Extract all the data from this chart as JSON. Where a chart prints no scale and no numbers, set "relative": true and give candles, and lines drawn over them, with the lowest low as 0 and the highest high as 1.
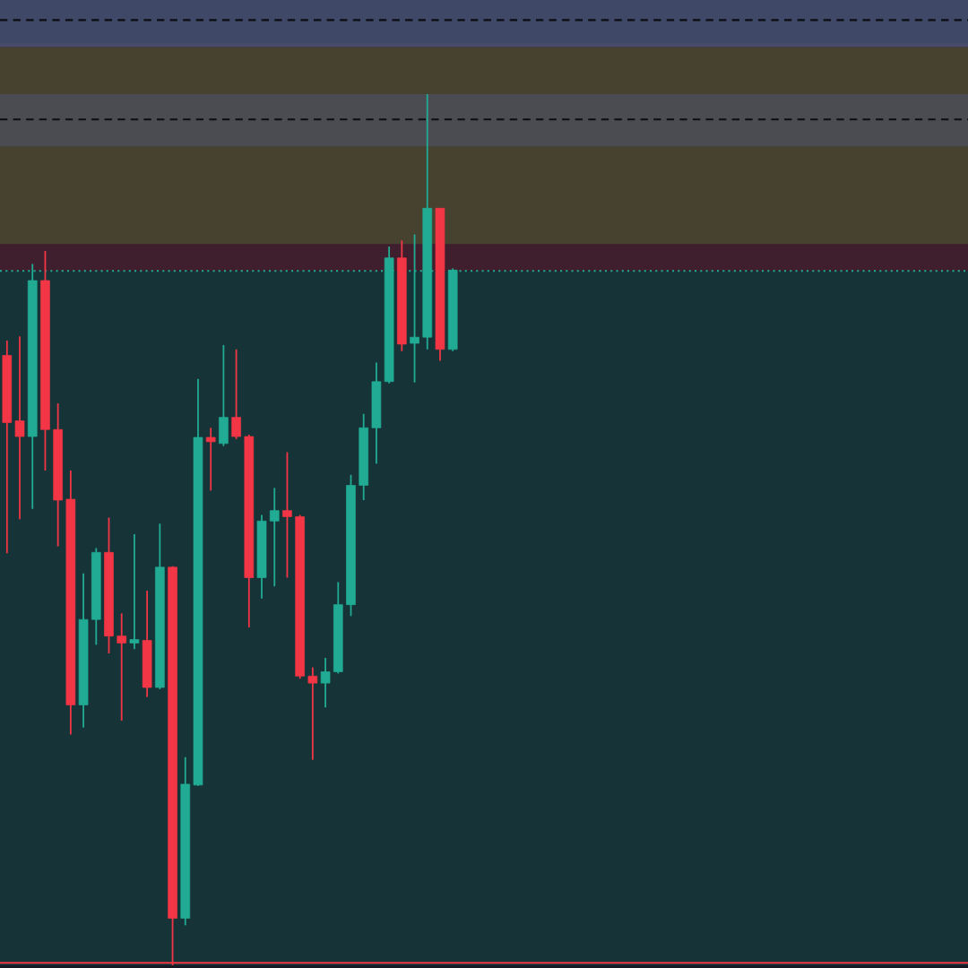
{
  "chart_data": {
    "type": "candlestick",
    "relative": true,
    "categories": [
      null,
      null,
      null,
      null,
      null,
      null,
      null,
      null,
      null,
      null,
      null,
      null,
      null,
      null,
      null,
      null,
      null,
      null,
      null,
      null,
      null,
      null,
      null,
      null,
      null,
      null,
      null,
      null,
      null,
      null,
      null,
      null,
      null,
      null,
      null,
      null,
      null,
      null,
      null,
      null,
      null,
      null,
      null,
      null,
      null,
      null,
      null,
      null,
      null,
      null,
      null,
      null,
      null,
      null,
      null,
      null,
      null,
      null,
      null,
      null,
      null,
      null,
      null,
      null,
      null,
      null,
      null,
      null,
      null,
      null,
      null,
      null,
      null,
      null,
      null,
      null
    ],
    "ohlc": [
      [
        0.7,
        0.717,
        0.473,
        0.623
      ],
      [
        0.625,
        0.722,
        0.512,
        0.607
      ],
      [
        0.607,
        0.805,
        0.524,
        0.786
      ],
      [
        0.786,
        0.82,
        0.568,
        0.615
      ],
      [
        0.615,
        0.645,
        0.481,
        0.534
      ],
      [
        0.535,
        0.568,
        0.265,
        0.299
      ],
      [
        0.299,
        0.45,
        0.273,
        0.397
      ],
      [
        0.397,
        0.479,
        0.368,
        0.474
      ],
      [
        0.474,
        0.514,
        0.358,
        0.378
      ],
      [
        0.378,
        0.404,
        0.281,
        0.37
      ],
      [
        0.37,
        0.495,
        0.363,
        0.374
      ],
      [
        0.373,
        0.43,
        0.308,
        0.319
      ],
      [
        0.319,
        0.507,
        0.317,
        0.457
      ],
      [
        0.457,
        0.458,
        0.0,
        0.054
      ],
      [
        0.054,
        0.239,
        0.046,
        0.208
      ],
      [
        0.207,
        0.673,
        0.206,
        0.606
      ],
      [
        0.606,
        0.617,
        0.545,
        0.601
      ],
      [
        0.599,
        0.712,
        0.596,
        0.629
      ],
      [
        0.629,
        0.707,
        0.604,
        0.607
      ],
      [
        0.607,
        0.609,
        0.388,
        0.445
      ],
      [
        0.445,
        0.517,
        0.421,
        0.51
      ],
      [
        0.51,
        0.548,
        0.435,
        0.522
      ],
      [
        0.522,
        0.589,
        0.445,
        0.515
      ],
      [
        0.515,
        0.517,
        0.329,
        0.332
      ],
      [
        0.332,
        0.342,
        0.236,
        0.324
      ],
      [
        0.324,
        0.353,
        0.296,
        0.337
      ],
      [
        0.337,
        0.44,
        0.335,
        0.414
      ],
      [
        0.414,
        0.563,
        0.401,
        0.551
      ],
      [
        0.551,
        0.633,
        0.534,
        0.617
      ],
      [
        0.617,
        0.692,
        0.576,
        0.67
      ],
      [
        0.67,
        0.825,
        0.668,
        0.812
      ],
      [
        0.812,
        0.832,
        0.705,
        0.713
      ],
      [
        0.714,
        0.839,
        0.669,
        0.721
      ],
      [
        0.721,
        1.0,
        0.707,
        0.869
      ],
      [
        0.869,
        0.869,
        0.694,
        0.707
      ],
      [
        0.707,
        0.8,
        0.705,
        0.798
      ],
      null,
      null,
      null,
      null,
      null,
      null,
      null,
      null,
      null,
      null,
      null,
      null,
      null,
      null,
      null,
      null,
      null,
      null,
      null,
      null,
      null,
      null,
      null,
      null,
      null,
      null,
      null,
      null,
      null,
      null,
      null,
      null,
      null,
      null,
      null,
      null,
      null,
      null,
      null,
      null
    ],
    "colors": [
      "#f23645",
      "#f23645",
      "#22ab94",
      "#f23645",
      "#f23645",
      "#f23645",
      "#22ab94",
      "#22ab94",
      "#f23645",
      "#f23645",
      "#22ab94",
      "#f23645",
      "#22ab94",
      "#f23645",
      "#22ab94",
      "#22ab94",
      "#f23645",
      "#22ab94",
      "#f23645",
      "#f23645",
      "#22ab94",
      "#22ab94",
      "#f23645",
      "#f23645",
      "#f23645",
      "#22ab94",
      "#22ab94",
      "#22ab94",
      "#22ab94",
      "#22ab94",
      "#22ab94",
      "#f23645",
      "#22ab94",
      "#22ab94",
      "#f23645",
      "#22ab94",
      null,
      null,
      null,
      null,
      null,
      null,
      null,
      null,
      null,
      null,
      null,
      null,
      null,
      null,
      null,
      null,
      null,
      null,
      null,
      null,
      null,
      null,
      null,
      null,
      null,
      null,
      null,
      null,
      null,
      null,
      null,
      null,
      null,
      null,
      null,
      null,
      null,
      null,
      null,
      null
    ],
    "bands": [
      {
        "axis": "y",
        "from": 1.054,
        "to": 1.108,
        "color": "#4a5578"
      },
      {
        "axis": "y",
        "from": 0.94,
        "to": 1.0,
        "color": "#4b4f5a"
      },
      {
        "axis": "y",
        "from": 0.828,
        "to": 1.054,
        "color": "#4a4a30"
      },
      {
        "axis": "y",
        "from": 0.797,
        "to": 1.059,
        "color": "#4a2030"
      },
      {
        "axis": "y",
        "from": 0.0,
        "to": 0.797,
        "color": "#163a3c"
      }
    ],
    "ref_lines": [
      {
        "axis": "y",
        "value": 1.085,
        "color": "#0b0d12",
        "line_style": "dashed"
      },
      {
        "axis": "y",
        "value": 0.971,
        "color": "#0b0d12",
        "line_style": "dashed"
      },
      {
        "axis": "y",
        "value": 0.797,
        "color": "#22ab94",
        "line_style": "dotted"
      },
      {
        "axis": "y",
        "value": 0.003,
        "color": "#f23645",
        "line_style": "solid"
      }
    ]
  }
}
